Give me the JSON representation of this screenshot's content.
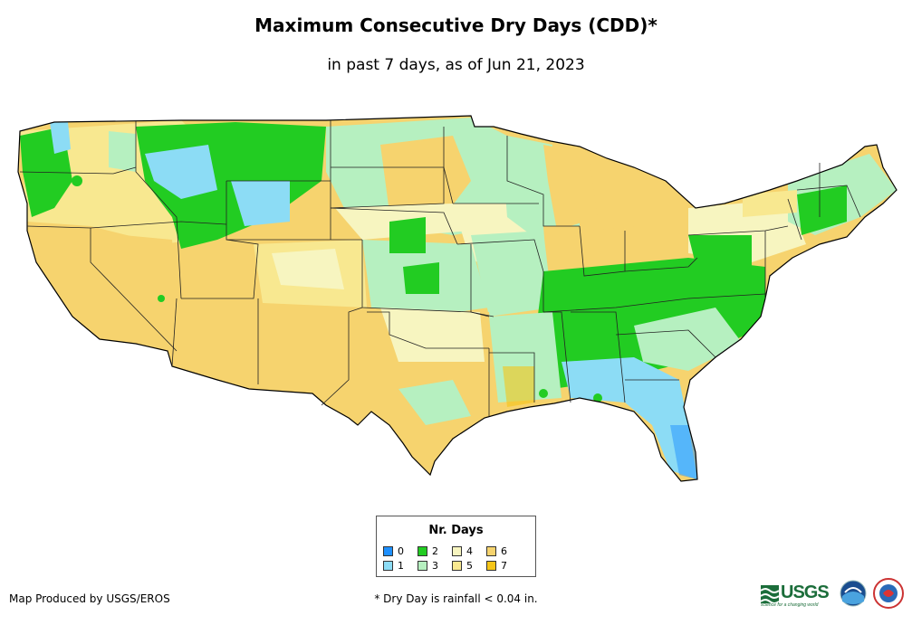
{
  "title": "Maximum Consecutive Dry Days (CDD)*",
  "subtitle": "in past 7 days, as of Jun 21, 2023",
  "legend": {
    "title": "Nr. Days",
    "items": [
      {
        "label": "0",
        "color": "#1e90ff"
      },
      {
        "label": "1",
        "color": "#8cdcf5"
      },
      {
        "label": "2",
        "color": "#22cc22"
      },
      {
        "label": "3",
        "color": "#b6f0c0"
      },
      {
        "label": "4",
        "color": "#f7f5c0"
      },
      {
        "label": "5",
        "color": "#f8e890"
      },
      {
        "label": "6",
        "color": "#f6d36e"
      },
      {
        "label": "7",
        "color": "#f5c518"
      }
    ]
  },
  "credit": "Map Produced by USGS/EROS",
  "footnote": "* Dry Day is rainfall < 0.04 in.",
  "logos": {
    "usgs": "USGS",
    "usgs_tagline": "science for a changing world"
  }
}
